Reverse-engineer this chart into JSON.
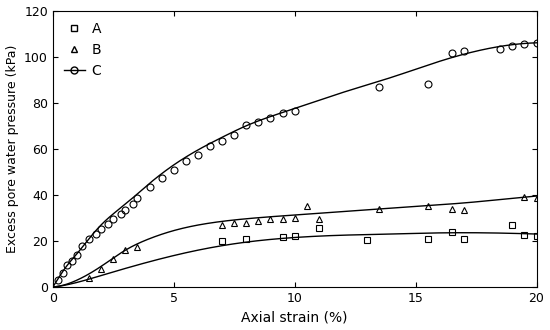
{
  "A_x": [
    7.0,
    8.0,
    9.5,
    10.0,
    11.0,
    13.0,
    15.5,
    16.5,
    17.0,
    19.0,
    19.5,
    20.0
  ],
  "A_y": [
    20.0,
    21.0,
    21.5,
    22.0,
    25.5,
    20.5,
    21.0,
    24.0,
    21.0,
    27.0,
    22.5,
    22.0
  ],
  "A_curve_x": [
    0.0,
    0.5,
    1.0,
    2.0,
    4.0,
    6.0,
    8.0,
    10.0,
    12.0,
    14.0,
    16.0,
    18.0,
    20.0
  ],
  "A_curve_y": [
    0.0,
    0.8,
    2.0,
    5.0,
    11.0,
    16.0,
    19.5,
    21.5,
    22.5,
    23.0,
    23.5,
    23.5,
    23.0
  ],
  "B_x": [
    1.5,
    2.0,
    2.5,
    3.0,
    3.5,
    7.0,
    7.5,
    8.0,
    8.5,
    9.0,
    9.5,
    10.0,
    10.5,
    11.0,
    13.5,
    15.5,
    16.5,
    17.0,
    19.5,
    20.0
  ],
  "B_y": [
    4.0,
    8.0,
    12.0,
    16.0,
    17.5,
    27.0,
    28.0,
    28.0,
    28.5,
    29.5,
    29.5,
    30.0,
    35.0,
    29.5,
    34.0,
    35.0,
    34.0,
    33.5,
    39.0,
    38.5
  ],
  "B_curve_x": [
    0.0,
    0.5,
    1.0,
    2.0,
    3.0,
    4.0,
    5.0,
    7.0,
    9.0,
    11.0,
    13.0,
    15.0,
    17.0,
    19.0,
    20.0
  ],
  "B_curve_y": [
    0.0,
    1.0,
    3.0,
    9.0,
    16.0,
    21.0,
    24.5,
    28.5,
    30.5,
    32.0,
    33.5,
    35.0,
    36.5,
    38.5,
    39.5
  ],
  "C_x": [
    0.2,
    0.4,
    0.6,
    0.8,
    1.0,
    1.2,
    1.5,
    1.8,
    2.0,
    2.3,
    2.5,
    2.8,
    3.0,
    3.3,
    3.5,
    4.0,
    4.5,
    5.0,
    5.5,
    6.0,
    6.5,
    7.0,
    7.5,
    8.0,
    8.5,
    9.0,
    9.5,
    10.0,
    13.5,
    15.5,
    16.5,
    17.0,
    18.5,
    19.0,
    19.5,
    20.0
  ],
  "C_y": [
    3.0,
    6.0,
    9.5,
    11.5,
    14.0,
    18.0,
    21.0,
    23.0,
    25.0,
    27.5,
    29.5,
    31.5,
    33.5,
    36.0,
    38.5,
    43.5,
    47.5,
    51.0,
    54.5,
    57.5,
    61.0,
    63.5,
    66.0,
    70.5,
    71.5,
    73.5,
    75.5,
    76.5,
    87.0,
    88.0,
    101.5,
    102.5,
    103.5,
    104.5,
    105.5,
    106.0
  ],
  "C_curve_x": [
    0.0,
    0.3,
    0.6,
    1.0,
    1.5,
    2.0,
    3.0,
    4.0,
    5.0,
    6.0,
    7.0,
    8.0,
    9.0,
    10.0,
    12.0,
    14.0,
    16.0,
    18.0,
    20.0
  ],
  "C_curve_y": [
    0.0,
    5.0,
    9.5,
    14.5,
    21.0,
    27.0,
    36.0,
    45.0,
    53.0,
    59.5,
    65.0,
    70.0,
    74.0,
    77.5,
    84.5,
    91.0,
    98.0,
    103.5,
    106.0
  ],
  "xlabel": "Axial strain (%)",
  "ylabel": "Excess pore water pressure (kPa)",
  "xlim": [
    0,
    20
  ],
  "ylim": [
    0,
    120
  ],
  "yticks": [
    0,
    20,
    40,
    60,
    80,
    100,
    120
  ],
  "xticks": [
    0,
    5,
    10,
    15,
    20
  ],
  "color": "#000000",
  "marker_size": 5,
  "linewidth": 1.0
}
